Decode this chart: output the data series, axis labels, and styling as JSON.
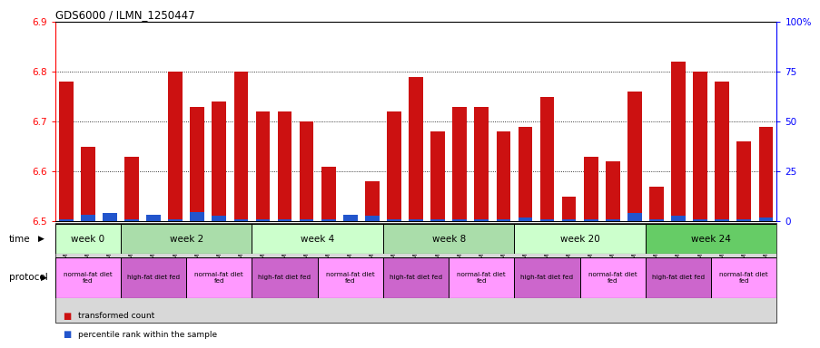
{
  "title": "GDS6000 / ILMN_1250447",
  "samples": [
    "GSM1577825",
    "GSM1577826",
    "GSM1577827",
    "GSM1577831",
    "GSM1577832",
    "GSM1577833",
    "GSM1577828",
    "GSM1577829",
    "GSM1577830",
    "GSM1577837",
    "GSM1577838",
    "GSM1577839",
    "GSM1577834",
    "GSM1577835",
    "GSM1577836",
    "GSM1577843",
    "GSM1577844",
    "GSM1577845",
    "GSM1577840",
    "GSM1577841",
    "GSM1577842",
    "GSM1577849",
    "GSM1577850",
    "GSM1577851",
    "GSM1577846",
    "GSM1577847",
    "GSM1577848",
    "GSM1577855",
    "GSM1577856",
    "GSM1577857",
    "GSM1577852",
    "GSM1577853",
    "GSM1577854"
  ],
  "red_values": [
    6.78,
    6.65,
    6.5,
    6.63,
    6.5,
    6.8,
    6.73,
    6.74,
    6.8,
    6.72,
    6.72,
    6.7,
    6.61,
    6.5,
    6.58,
    6.72,
    6.79,
    6.68,
    6.73,
    6.73,
    6.68,
    6.69,
    6.75,
    6.55,
    6.63,
    6.62,
    6.76,
    6.57,
    6.82,
    6.8,
    6.78,
    6.66,
    6.69
  ],
  "blue_pct": [
    3,
    10,
    12,
    3,
    10,
    3,
    13,
    8,
    3,
    3,
    3,
    3,
    3,
    10,
    8,
    3,
    3,
    3,
    3,
    3,
    3,
    5,
    3,
    3,
    3,
    3,
    12,
    3,
    8,
    3,
    3,
    3,
    5
  ],
  "y_min": 6.5,
  "y_max": 6.9,
  "y_ticks": [
    6.5,
    6.6,
    6.7,
    6.8,
    6.9
  ],
  "y2_ticks": [
    0,
    25,
    50,
    75,
    100
  ],
  "y2_tick_labels": [
    "0",
    "25",
    "50",
    "75",
    "100%"
  ],
  "time_groups": [
    {
      "label": "week 0",
      "start": 0,
      "end": 3,
      "color": "#ccffcc"
    },
    {
      "label": "week 2",
      "start": 3,
      "end": 9,
      "color": "#aaddaa"
    },
    {
      "label": "week 4",
      "start": 9,
      "end": 15,
      "color": "#ccffcc"
    },
    {
      "label": "week 8",
      "start": 15,
      "end": 21,
      "color": "#aaddaa"
    },
    {
      "label": "week 20",
      "start": 21,
      "end": 27,
      "color": "#ccffcc"
    },
    {
      "label": "week 24",
      "start": 27,
      "end": 33,
      "color": "#66cc66"
    }
  ],
  "protocol_groups": [
    {
      "label": "normal-fat diet\nfed",
      "start": 0,
      "end": 3,
      "color": "#ff99ff"
    },
    {
      "label": "high-fat diet fed",
      "start": 3,
      "end": 6,
      "color": "#cc66cc"
    },
    {
      "label": "normal-fat diet\nfed",
      "start": 6,
      "end": 9,
      "color": "#ff99ff"
    },
    {
      "label": "high-fat diet fed",
      "start": 9,
      "end": 12,
      "color": "#cc66cc"
    },
    {
      "label": "normal-fat diet\nfed",
      "start": 12,
      "end": 15,
      "color": "#ff99ff"
    },
    {
      "label": "high-fat diet fed",
      "start": 15,
      "end": 18,
      "color": "#cc66cc"
    },
    {
      "label": "normal-fat diet\nfed",
      "start": 18,
      "end": 21,
      "color": "#ff99ff"
    },
    {
      "label": "high-fat diet fed",
      "start": 21,
      "end": 24,
      "color": "#cc66cc"
    },
    {
      "label": "normal-fat diet\nfed",
      "start": 24,
      "end": 27,
      "color": "#ff99ff"
    },
    {
      "label": "high-fat diet fed",
      "start": 27,
      "end": 30,
      "color": "#cc66cc"
    },
    {
      "label": "normal-fat diet\nfed",
      "start": 30,
      "end": 33,
      "color": "#ff99ff"
    }
  ],
  "bar_color_red": "#cc1111",
  "bar_color_blue": "#2255cc",
  "bar_width": 0.65,
  "tick_label_fontsize": 5.2,
  "bg_color": "#ffffff",
  "label_area_color": "#d8d8d8"
}
